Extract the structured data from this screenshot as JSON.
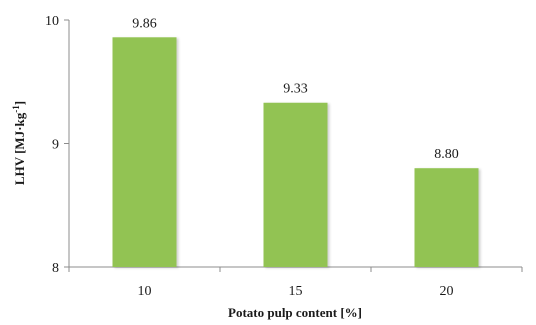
{
  "chart_data": {
    "type": "bar",
    "categories": [
      "10",
      "15",
      "20"
    ],
    "values": [
      9.86,
      9.33,
      8.8
    ],
    "data_labels": [
      "9.86",
      "9.33",
      "8.80"
    ],
    "xlabel": "Potato pulp content [%]",
    "ylabel": "LHV [MJ·kg",
    "ylabel_superscript": "-1",
    "ylabel_close": "]",
    "ylim": [
      8,
      10
    ],
    "yticks": [
      8,
      9,
      10
    ],
    "ytick_labels": [
      "8",
      "9",
      "10"
    ],
    "bar_color": "#92c353",
    "grid": false,
    "legend": "none"
  }
}
